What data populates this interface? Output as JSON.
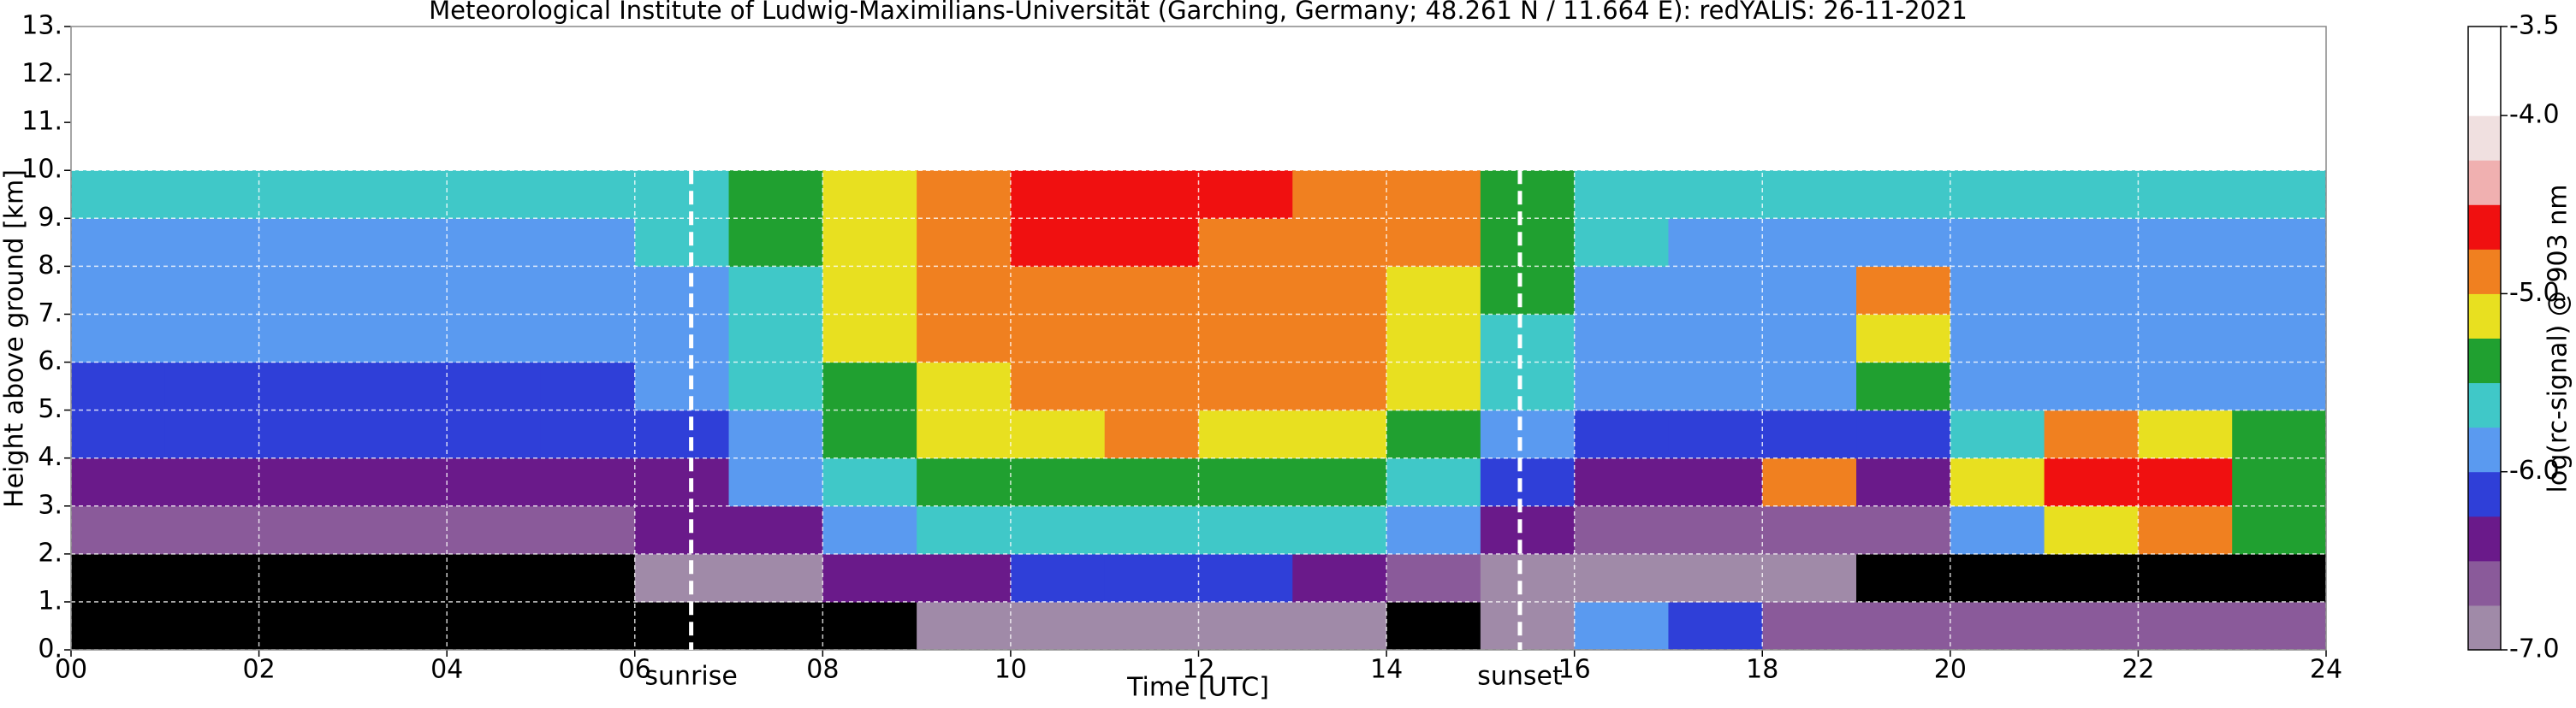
{
  "chart_data": {
    "type": "heatmap",
    "title": "Meteorological Institute of Ludwig-Maximilians-Universität (Garching, Germany; 48.261 N / 11.664 E):    redYALIS: 26-11-2021",
    "xlabel": "Time [UTC]",
    "ylabel": "Height above ground [km]",
    "xlim": [
      0,
      24
    ],
    "ylim": [
      0,
      13
    ],
    "xticks": [
      {
        "value": 0,
        "label": "00"
      },
      {
        "value": 2,
        "label": "02"
      },
      {
        "value": 4,
        "label": "04"
      },
      {
        "value": 6,
        "label": "06"
      },
      {
        "value": 8,
        "label": "08"
      },
      10,
      12,
      14,
      16,
      18,
      20,
      22,
      24
    ],
    "yticks": [
      {
        "value": 0,
        "label": "0."
      },
      {
        "value": 1,
        "label": "1."
      },
      {
        "value": 2,
        "label": "2."
      },
      {
        "value": 3,
        "label": "3."
      },
      {
        "value": 4,
        "label": "4."
      },
      {
        "value": 5,
        "label": "5."
      },
      {
        "value": 6,
        "label": "6."
      },
      {
        "value": 7,
        "label": "7."
      },
      {
        "value": 8,
        "label": "8."
      },
      {
        "value": 9,
        "label": "9."
      },
      {
        "value": 10,
        "label": "10."
      },
      {
        "value": 11,
        "label": "11."
      },
      {
        "value": 12,
        "label": "12."
      },
      {
        "value": 13,
        "label": "13."
      }
    ],
    "grid": true,
    "x_bins": [
      0,
      1,
      2,
      3,
      4,
      5,
      6,
      7,
      8,
      9,
      10,
      11,
      12,
      13,
      14,
      15,
      16,
      17,
      18,
      19,
      20,
      21,
      22,
      23,
      24
    ],
    "y_bins": [
      0,
      1,
      2,
      3,
      4,
      5,
      6,
      7,
      8,
      9,
      10
    ],
    "z": [
      [
        -7.4,
        -7.1,
        -6.6,
        -6.35,
        -6.15,
        -6.05,
        -5.95,
        -5.85,
        -5.8,
        -5.75
      ],
      [
        -7.4,
        -7.1,
        -6.6,
        -6.35,
        -6.15,
        -6.05,
        -5.95,
        -5.85,
        -5.8,
        -5.75
      ],
      [
        -7.4,
        -7.1,
        -6.6,
        -6.35,
        -6.15,
        -6.05,
        -5.95,
        -5.85,
        -5.8,
        -5.75
      ],
      [
        -7.4,
        -7.1,
        -6.6,
        -6.35,
        -6.15,
        -6.05,
        -5.95,
        -5.85,
        -5.8,
        -5.75
      ],
      [
        -7.4,
        -7.1,
        -6.6,
        -6.35,
        -6.15,
        -6.05,
        -5.95,
        -5.85,
        -5.8,
        -5.75
      ],
      [
        -7.3,
        -7.1,
        -6.6,
        -6.35,
        -6.15,
        -6.05,
        -5.95,
        -5.85,
        -5.8,
        -5.75
      ],
      [
        -7.3,
        -7.0,
        -6.5,
        -6.3,
        -6.1,
        -6.0,
        -5.9,
        -5.8,
        -5.75,
        -5.7
      ],
      [
        -7.2,
        -6.8,
        -6.3,
        -6.0,
        -5.8,
        -5.7,
        -5.6,
        -5.55,
        -5.5,
        -5.45
      ],
      [
        -7.1,
        -6.5,
        -6.0,
        -5.7,
        -5.5,
        -5.35,
        -5.25,
        -5.2,
        -5.15,
        -5.1
      ],
      [
        -7.0,
        -6.3,
        -5.7,
        -5.4,
        -5.2,
        -5.05,
        -4.95,
        -4.9,
        -4.85,
        -4.8
      ],
      [
        -6.9,
        -6.2,
        -5.6,
        -5.3,
        -5.05,
        -4.95,
        -4.9,
        -4.8,
        -4.7,
        -4.6
      ],
      [
        -6.9,
        -6.2,
        -5.6,
        -5.3,
        -5.0,
        -4.95,
        -4.85,
        -4.8,
        -4.7,
        -4.6
      ],
      [
        -6.9,
        -6.2,
        -5.6,
        -5.3,
        -5.05,
        -4.95,
        -4.9,
        -4.85,
        -4.8,
        -4.7
      ],
      [
        -6.95,
        -6.3,
        -5.7,
        -5.4,
        -5.15,
        -5.0,
        -4.95,
        -4.9,
        -4.85,
        -4.8
      ],
      [
        -7.1,
        -6.6,
        -6.0,
        -5.6,
        -5.3,
        -5.2,
        -5.1,
        -5.05,
        -5.0,
        -5.0
      ],
      [
        -7.0,
        -6.9,
        -6.4,
        -6.1,
        -5.8,
        -5.7,
        -5.6,
        -5.5,
        -5.45,
        -5.4
      ],
      [
        -5.9,
        -7.0,
        -6.6,
        -6.3,
        -6.1,
        -6.0,
        -5.9,
        -5.8,
        -5.75,
        -5.7
      ],
      [
        -6.2,
        -7.0,
        -6.6,
        -6.3,
        -6.15,
        -6.0,
        -5.9,
        -5.85,
        -5.8,
        -5.75
      ],
      [
        -6.6,
        -7.0,
        -6.6,
        -4.9,
        -6.1,
        -6.0,
        -5.9,
        -5.85,
        -5.8,
        -5.75
      ],
      [
        -6.7,
        -7.1,
        -6.6,
        -6.3,
        -6.1,
        -5.3,
        -5.1,
        -5.0,
        -5.8,
        -5.75
      ],
      [
        -6.7,
        -7.1,
        -5.8,
        -5.2,
        -5.6,
        -6.0,
        -5.9,
        -5.85,
        -5.8,
        -5.75
      ],
      [
        -6.7,
        -7.1,
        -5.2,
        -4.7,
        -4.9,
        -6.0,
        -5.9,
        -5.85,
        -5.8,
        -5.75
      ],
      [
        -6.7,
        -7.1,
        -5.0,
        -4.6,
        -5.2,
        -6.0,
        -5.9,
        -5.85,
        -5.8,
        -5.75
      ],
      [
        -6.7,
        -7.1,
        -5.4,
        -5.3,
        -5.5,
        -6.0,
        -5.9,
        -5.85,
        -5.8,
        -5.75
      ]
    ],
    "colorbar": {
      "label": "log(rc-signal) @ 903 nm",
      "lim": [
        -7,
        -3.5
      ],
      "ticks": [
        {
          "value": -7,
          "label": "-7.0"
        },
        {
          "value": -6,
          "label": "-6.0"
        },
        {
          "value": -5,
          "label": "-5.0"
        },
        {
          "value": -4,
          "label": "-4.0"
        },
        -3.5
      ],
      "colors": [
        "#a08aa8",
        "#8a5a9a",
        "#6a1a8a",
        "#2f3fd8",
        "#5a9af0",
        "#40c8c8",
        "#20a030",
        "#e8e020",
        "#f08020",
        "#f01010",
        "#f0b0b0",
        "#f0e0e0",
        "#ffffff",
        "#ffffff"
      ],
      "under_color": "#000000"
    },
    "annotations": [
      {
        "text": "sunrise",
        "x": 6.6
      },
      {
        "text": "sunset",
        "x": 15.42
      }
    ]
  }
}
